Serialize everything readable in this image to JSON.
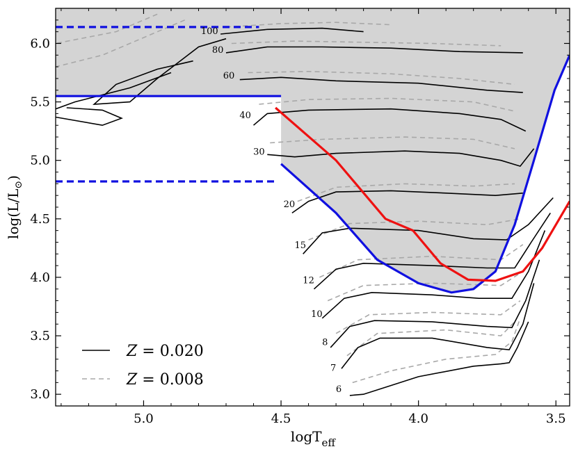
{
  "chart_data": {
    "type": "line",
    "title": "",
    "xlabel": "logT",
    "xlabel_sub": "eff",
    "ylabel": "log(L/L",
    "ylabel_sym": "⊙",
    "ylabel_end": ")",
    "xlim": [
      5.32,
      3.45
    ],
    "ylim": [
      2.9,
      6.3
    ],
    "x_ticks": [
      5.0,
      4.5,
      4.0,
      3.5
    ],
    "x_tick_labels": [
      "5.0",
      "4.5",
      "4.0",
      "3.5"
    ],
    "y_ticks": [
      3.0,
      3.5,
      4.0,
      4.5,
      5.0,
      5.5,
      6.0
    ],
    "y_tick_labels": [
      "3.0",
      "3.5",
      "4.0",
      "4.5",
      "5.0",
      "5.5",
      "6.0"
    ],
    "shaded_region": {
      "color": "#d4d4d4",
      "polygon": [
        [
          5.32,
          6.3
        ],
        [
          3.45,
          6.3
        ],
        [
          3.45,
          5.9
        ],
        [
          3.505,
          5.6
        ],
        [
          3.58,
          5.0
        ],
        [
          3.65,
          4.45
        ],
        [
          3.72,
          4.05
        ],
        [
          3.8,
          3.9
        ],
        [
          3.88,
          3.87
        ],
        [
          4.0,
          3.95
        ],
        [
          4.15,
          4.15
        ],
        [
          4.3,
          4.55
        ],
        [
          4.5,
          4.97
        ],
        [
          4.5,
          5.55
        ],
        [
          5.32,
          5.55
        ]
      ]
    },
    "colors": {
      "z020": "#000000",
      "z008": "#a8a8a8",
      "blue": "#1010e0",
      "red": "#ee1111"
    },
    "series": [
      {
        "name": "Z = 0.020",
        "style": "solid",
        "color": "#000000"
      },
      {
        "name": "Z = 0.008",
        "style": "dashed",
        "color": "#a8a8a8"
      }
    ],
    "legend": {
      "location": "lower-left",
      "entries": [
        "Z = 0.020",
        "Z = 0.008"
      ]
    },
    "tracks": [
      {
        "mass": "6",
        "label_at": [
          4.29,
          3.02
        ],
        "z020": [
          [
            4.25,
            2.99
          ],
          [
            4.2,
            3.0
          ],
          [
            4.12,
            3.06
          ],
          [
            4.0,
            3.15
          ],
          [
            3.8,
            3.24
          ],
          [
            3.7,
            3.26
          ],
          [
            3.67,
            3.27
          ],
          [
            3.64,
            3.4
          ],
          [
            3.6,
            3.62
          ]
        ],
        "z008": [
          [
            4.24,
            3.1
          ],
          [
            4.1,
            3.2
          ],
          [
            3.9,
            3.3
          ],
          [
            3.72,
            3.34
          ],
          [
            3.66,
            3.45
          ],
          [
            3.63,
            3.65
          ]
        ]
      },
      {
        "mass": "7",
        "label_at": [
          4.31,
          3.2
        ],
        "z020": [
          [
            4.28,
            3.22
          ],
          [
            4.22,
            3.4
          ],
          [
            4.14,
            3.48
          ],
          [
            3.95,
            3.48
          ],
          [
            3.75,
            3.4
          ],
          [
            3.67,
            3.38
          ],
          [
            3.62,
            3.6
          ],
          [
            3.58,
            3.95
          ]
        ],
        "z008": [
          [
            4.26,
            3.33
          ],
          [
            4.15,
            3.52
          ],
          [
            3.9,
            3.55
          ],
          [
            3.7,
            3.5
          ],
          [
            3.65,
            3.62
          ]
        ]
      },
      {
        "mass": "8",
        "label_at": [
          4.34,
          3.42
        ],
        "z020": [
          [
            4.32,
            3.4
          ],
          [
            4.25,
            3.58
          ],
          [
            4.16,
            3.63
          ],
          [
            3.95,
            3.62
          ],
          [
            3.75,
            3.58
          ],
          [
            3.66,
            3.57
          ],
          [
            3.61,
            3.8
          ],
          [
            3.56,
            4.15
          ]
        ],
        "z008": [
          [
            4.3,
            3.52
          ],
          [
            4.18,
            3.68
          ],
          [
            3.95,
            3.7
          ],
          [
            3.7,
            3.68
          ],
          [
            3.63,
            3.8
          ]
        ]
      },
      {
        "mass": "10",
        "label_at": [
          4.37,
          3.66
        ],
        "z020": [
          [
            4.35,
            3.65
          ],
          [
            4.27,
            3.82
          ],
          [
            4.17,
            3.87
          ],
          [
            3.95,
            3.85
          ],
          [
            3.78,
            3.82
          ],
          [
            3.66,
            3.82
          ],
          [
            3.6,
            4.05
          ],
          [
            3.54,
            4.4
          ]
        ],
        "z008": [
          [
            4.33,
            3.8
          ],
          [
            4.2,
            3.93
          ],
          [
            3.95,
            3.95
          ],
          [
            3.7,
            3.93
          ],
          [
            3.62,
            4.05
          ]
        ]
      },
      {
        "mass": "12",
        "label_at": [
          4.4,
          3.95
        ],
        "z020": [
          [
            4.38,
            3.9
          ],
          [
            4.3,
            4.07
          ],
          [
            4.2,
            4.12
          ],
          [
            3.95,
            4.1
          ],
          [
            3.75,
            4.08
          ],
          [
            3.65,
            4.08
          ],
          [
            3.59,
            4.3
          ],
          [
            3.52,
            4.55
          ]
        ],
        "z008": [
          [
            4.36,
            4.0
          ],
          [
            4.22,
            4.15
          ],
          [
            3.95,
            4.18
          ],
          [
            3.7,
            4.15
          ],
          [
            3.62,
            4.28
          ]
        ]
      },
      {
        "mass": "15",
        "label_at": [
          4.43,
          4.25
        ],
        "z020": [
          [
            4.42,
            4.2
          ],
          [
            4.35,
            4.38
          ],
          [
            4.25,
            4.42
          ],
          [
            4.0,
            4.4
          ],
          [
            3.8,
            4.33
          ],
          [
            3.68,
            4.32
          ],
          [
            3.6,
            4.45
          ],
          [
            3.51,
            4.68
          ]
        ],
        "z008": [
          [
            4.4,
            4.32
          ],
          [
            4.25,
            4.46
          ],
          [
            4.0,
            4.48
          ],
          [
            3.75,
            4.45
          ],
          [
            3.63,
            4.5
          ]
        ]
      },
      {
        "mass": "20",
        "label_at": [
          4.47,
          4.6
        ],
        "z020": [
          [
            4.46,
            4.55
          ],
          [
            4.4,
            4.65
          ],
          [
            4.3,
            4.73
          ],
          [
            4.1,
            4.74
          ],
          [
            3.9,
            4.72
          ],
          [
            3.72,
            4.7
          ],
          [
            3.62,
            4.72
          ]
        ],
        "z008": [
          [
            4.44,
            4.65
          ],
          [
            4.3,
            4.77
          ],
          [
            4.05,
            4.8
          ],
          [
            3.8,
            4.78
          ],
          [
            3.65,
            4.8
          ]
        ]
      },
      {
        "mass": "30",
        "label_at": [
          4.58,
          5.05
        ],
        "z020": [
          [
            4.55,
            5.05
          ],
          [
            4.45,
            5.03
          ],
          [
            4.3,
            5.06
          ],
          [
            4.05,
            5.08
          ],
          [
            3.85,
            5.06
          ],
          [
            3.7,
            5.0
          ],
          [
            3.63,
            4.95
          ],
          [
            3.58,
            5.1
          ]
        ],
        "z008": [
          [
            4.54,
            5.15
          ],
          [
            4.35,
            5.18
          ],
          [
            4.05,
            5.2
          ],
          [
            3.8,
            5.18
          ],
          [
            3.65,
            5.1
          ]
        ]
      },
      {
        "mass": "40",
        "label_at": [
          4.63,
          5.36
        ],
        "z020": [
          [
            4.6,
            5.3
          ],
          [
            4.55,
            5.4
          ],
          [
            4.4,
            5.43
          ],
          [
            4.1,
            5.44
          ],
          [
            3.85,
            5.4
          ],
          [
            3.7,
            5.35
          ],
          [
            3.61,
            5.25
          ]
        ],
        "z008": [
          [
            4.58,
            5.48
          ],
          [
            4.4,
            5.52
          ],
          [
            4.1,
            5.53
          ],
          [
            3.8,
            5.5
          ],
          [
            3.65,
            5.42
          ]
        ]
      },
      {
        "mass": "60",
        "label_at": [
          4.69,
          5.7
        ],
        "z020": [
          [
            4.65,
            5.69
          ],
          [
            4.5,
            5.71
          ],
          [
            4.3,
            5.68
          ],
          [
            4.0,
            5.66
          ],
          [
            3.75,
            5.6
          ],
          [
            3.62,
            5.58
          ]
        ],
        "z008": [
          [
            4.62,
            5.75
          ],
          [
            4.4,
            5.76
          ],
          [
            4.1,
            5.74
          ],
          [
            3.85,
            5.7
          ],
          [
            3.65,
            5.65
          ]
        ]
      },
      {
        "mass": "80",
        "label_at": [
          4.73,
          5.92
        ],
        "z020": [
          [
            4.7,
            5.92
          ],
          [
            4.55,
            5.97
          ],
          [
            4.35,
            5.97
          ],
          [
            4.1,
            5.96
          ],
          [
            3.85,
            5.93
          ],
          [
            3.62,
            5.92
          ]
        ],
        "z008": [
          [
            4.68,
            6.0
          ],
          [
            4.45,
            6.02
          ],
          [
            4.2,
            6.01
          ],
          [
            3.95,
            6.0
          ],
          [
            3.7,
            5.98
          ]
        ]
      },
      {
        "mass": "100",
        "label_at": [
          4.76,
          6.08
        ],
        "z020": [
          [
            4.72,
            6.08
          ],
          [
            4.55,
            6.12
          ],
          [
            4.35,
            6.13
          ],
          [
            4.2,
            6.1
          ]
        ],
        "z008": [
          [
            4.7,
            6.14
          ],
          [
            4.5,
            6.17
          ],
          [
            4.3,
            6.18
          ],
          [
            4.1,
            6.16
          ]
        ]
      }
    ],
    "wr_loops": {
      "z020": [
        [
          [
            4.82,
            5.85
          ],
          [
            4.95,
            5.78
          ],
          [
            5.1,
            5.65
          ],
          [
            5.18,
            5.48
          ],
          [
            5.05,
            5.5
          ],
          [
            4.95,
            5.7
          ],
          [
            4.8,
            5.97
          ],
          [
            4.7,
            6.04
          ]
        ],
        [
          [
            4.9,
            5.75
          ],
          [
            5.05,
            5.62
          ],
          [
            5.25,
            5.5
          ],
          [
            5.32,
            5.44
          ]
        ],
        [
          [
            5.28,
            5.45
          ],
          [
            5.15,
            5.43
          ],
          [
            5.08,
            5.36
          ],
          [
            5.15,
            5.3
          ],
          [
            5.32,
            5.37
          ]
        ]
      ],
      "z008": [
        [
          [
            4.85,
            6.2
          ],
          [
            5.0,
            6.05
          ],
          [
            5.15,
            5.9
          ],
          [
            5.32,
            5.8
          ]
        ],
        [
          [
            4.95,
            6.25
          ],
          [
            5.1,
            6.1
          ],
          [
            5.32,
            6.0
          ]
        ]
      ]
    },
    "reference_lines": [
      {
        "name": "blue-line-lower",
        "color": "#1010e0",
        "style": "solid",
        "points": [
          [
            4.5,
            4.97
          ],
          [
            4.3,
            4.55
          ],
          [
            4.15,
            4.15
          ],
          [
            4.0,
            3.95
          ],
          [
            3.88,
            3.87
          ],
          [
            3.8,
            3.9
          ],
          [
            3.72,
            4.05
          ],
          [
            3.65,
            4.45
          ],
          [
            3.58,
            5.0
          ],
          [
            3.505,
            5.6
          ],
          [
            3.45,
            5.9
          ]
        ]
      },
      {
        "name": "red-line",
        "color": "#ee1111",
        "style": "solid",
        "points": [
          [
            4.52,
            5.45
          ],
          [
            4.3,
            5.0
          ],
          [
            4.12,
            4.5
          ],
          [
            4.02,
            4.4
          ],
          [
            3.92,
            4.12
          ],
          [
            3.82,
            3.98
          ],
          [
            3.72,
            3.97
          ],
          [
            3.62,
            4.05
          ],
          [
            3.55,
            4.25
          ],
          [
            3.45,
            4.65
          ]
        ]
      },
      {
        "name": "blue-line-upper",
        "color": "#1010e0",
        "style": "solid",
        "points": [
          [
            5.32,
            5.55
          ],
          [
            4.5,
            5.55
          ]
        ]
      },
      {
        "name": "blue-dashed-top",
        "color": "#1010e0",
        "style": "dashed",
        "points": [
          [
            5.32,
            6.14
          ],
          [
            4.58,
            6.14
          ]
        ]
      },
      {
        "name": "blue-dashed-bottom",
        "color": "#1010e0",
        "style": "dashed",
        "points": [
          [
            5.32,
            4.82
          ],
          [
            4.52,
            4.82
          ]
        ]
      }
    ]
  },
  "legend_labels": {
    "z020": {
      "var": "Z",
      "eq": " = 0.020"
    },
    "z008": {
      "var": "Z",
      "eq": " = 0.008"
    }
  }
}
